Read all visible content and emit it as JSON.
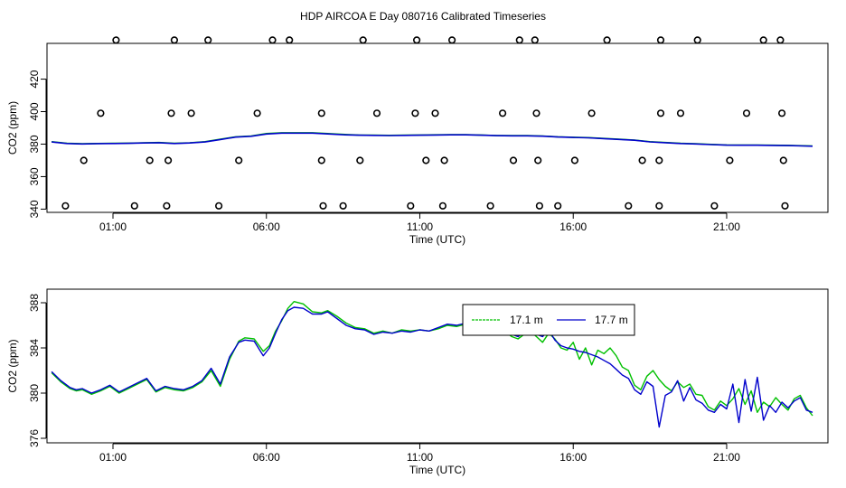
{
  "title": "HDP AIRCOA E  Day 080716  Calibrated Timeseries",
  "colors": {
    "green": "#00c000",
    "blue": "#0000cc"
  },
  "chart_data": [
    {
      "type": "line",
      "xlabel": "Time (UTC)",
      "ylabel": "CO2 (ppm)",
      "xticks": [
        "01:00",
        "06:00",
        "11:00",
        "16:00",
        "21:00"
      ],
      "xtick_hours": [
        1,
        6,
        11,
        16,
        21
      ],
      "xlim": [
        -1.15,
        24.3
      ],
      "yticks": [
        340,
        360,
        380,
        400,
        420
      ],
      "ylim": [
        338,
        442
      ],
      "grid": false,
      "series": [
        {
          "color": "green",
          "x": [
            -1,
            -0.5,
            0,
            0.5,
            1,
            1.5,
            2,
            2.5,
            3,
            3.5,
            4,
            4.5,
            5,
            5.5,
            6,
            6.5,
            7,
            7.5,
            8,
            8.5,
            9,
            9.5,
            10,
            10.5,
            11,
            11.5,
            12,
            12.5,
            13,
            13.5,
            14,
            14.5,
            15,
            15.5,
            16,
            16.5,
            17,
            17.5,
            18,
            18.5,
            19,
            19.5,
            20,
            20.5,
            21,
            21.5,
            22,
            22.5,
            23,
            23.5,
            23.8
          ],
          "y": [
            381.5,
            380.5,
            380.2,
            380.4,
            380.5,
            380.6,
            380.8,
            381.0,
            380.5,
            380.8,
            381.5,
            383,
            384.5,
            385,
            386.5,
            387,
            387,
            387,
            386.5,
            386,
            385.6,
            385.5,
            385.4,
            385.5,
            385.6,
            385.7,
            385.8,
            385.8,
            385.6,
            385.3,
            385.2,
            385.2,
            385.0,
            384.5,
            384.2,
            384.0,
            383.5,
            383.0,
            382.5,
            381.5,
            381.0,
            380.5,
            380.2,
            379.8,
            379.5,
            379.4,
            379.4,
            379.3,
            379.2,
            379.0,
            378.8
          ]
        },
        {
          "color": "blue",
          "x": [
            -1,
            -0.5,
            0,
            0.5,
            1,
            1.5,
            2,
            2.5,
            3,
            3.5,
            4,
            4.5,
            5,
            5.5,
            6,
            6.5,
            7,
            7.5,
            8,
            8.5,
            9,
            9.5,
            10,
            10.5,
            11,
            11.5,
            12,
            12.5,
            13,
            13.5,
            14,
            14.5,
            15,
            15.5,
            16,
            16.5,
            17,
            17.5,
            18,
            18.5,
            19,
            19.5,
            20,
            20.5,
            21,
            21.5,
            22,
            22.5,
            23,
            23.5,
            23.8
          ],
          "y": [
            381.3,
            380.4,
            380.1,
            380.3,
            380.4,
            380.5,
            380.7,
            380.9,
            380.4,
            380.7,
            381.3,
            382.8,
            384.3,
            384.8,
            386.2,
            386.8,
            386.8,
            386.8,
            386.3,
            385.8,
            385.5,
            385.4,
            385.3,
            385.4,
            385.5,
            385.6,
            385.7,
            385.7,
            385.5,
            385.2,
            385.1,
            385.1,
            384.9,
            384.4,
            384.1,
            383.9,
            383.4,
            382.9,
            382.4,
            381.4,
            380.9,
            380.4,
            380.1,
            379.7,
            379.4,
            379.3,
            379.3,
            379.2,
            379.1,
            378.9,
            378.7
          ]
        }
      ],
      "markers": {
        "symbol": "circle",
        "points": [
          [
            1.1,
            444
          ],
          [
            3.0,
            444
          ],
          [
            4.1,
            444
          ],
          [
            6.2,
            444
          ],
          [
            6.75,
            444
          ],
          [
            9.15,
            444
          ],
          [
            10.9,
            444
          ],
          [
            12.05,
            444
          ],
          [
            14.25,
            444
          ],
          [
            14.75,
            444
          ],
          [
            17.1,
            444
          ],
          [
            18.85,
            444
          ],
          [
            20.05,
            444
          ],
          [
            22.2,
            444
          ],
          [
            22.75,
            444
          ],
          [
            0.6,
            399
          ],
          [
            2.9,
            399
          ],
          [
            3.55,
            399
          ],
          [
            5.7,
            399
          ],
          [
            7.8,
            399
          ],
          [
            9.6,
            399
          ],
          [
            10.85,
            399
          ],
          [
            11.5,
            399
          ],
          [
            13.7,
            399
          ],
          [
            14.8,
            399
          ],
          [
            16.6,
            399
          ],
          [
            18.85,
            399
          ],
          [
            19.5,
            399
          ],
          [
            21.65,
            399
          ],
          [
            22.8,
            399
          ],
          [
            0.05,
            370
          ],
          [
            2.2,
            370
          ],
          [
            2.8,
            370
          ],
          [
            5.1,
            370
          ],
          [
            7.8,
            370
          ],
          [
            9.05,
            370
          ],
          [
            11.2,
            370
          ],
          [
            11.8,
            370
          ],
          [
            14.05,
            370
          ],
          [
            14.85,
            370
          ],
          [
            16.05,
            370
          ],
          [
            18.25,
            370
          ],
          [
            18.8,
            370
          ],
          [
            21.1,
            370
          ],
          [
            22.85,
            370
          ],
          [
            -0.55,
            342
          ],
          [
            1.7,
            342
          ],
          [
            2.75,
            342
          ],
          [
            4.45,
            342
          ],
          [
            7.85,
            342
          ],
          [
            8.5,
            342
          ],
          [
            10.7,
            342
          ],
          [
            11.75,
            342
          ],
          [
            13.3,
            342
          ],
          [
            14.9,
            342
          ],
          [
            15.5,
            342
          ],
          [
            17.8,
            342
          ],
          [
            18.8,
            342
          ],
          [
            20.6,
            342
          ],
          [
            22.9,
            342
          ]
        ]
      }
    },
    {
      "type": "line",
      "xlabel": "Time (UTC)",
      "ylabel": "CO2 (ppm)",
      "xticks": [
        "01:00",
        "06:00",
        "11:00",
        "16:00",
        "21:00"
      ],
      "xtick_hours": [
        1,
        6,
        11,
        16,
        21
      ],
      "xlim": [
        -1.15,
        24.3
      ],
      "yticks": [
        376,
        380,
        384,
        388
      ],
      "ylim": [
        375.6,
        389.2
      ],
      "grid": false,
      "legend": {
        "placement": "top-right"
      },
      "series": [
        {
          "name": "17.1 m",
          "color": "green",
          "x": [
            -1,
            -0.7,
            -0.4,
            -0.2,
            0,
            0.3,
            0.6,
            0.9,
            1.2,
            1.5,
            1.8,
            2.1,
            2.4,
            2.7,
            3,
            3.3,
            3.6,
            3.9,
            4.2,
            4.5,
            4.8,
            5.1,
            5.3,
            5.6,
            5.9,
            6.1,
            6.3,
            6.5,
            6.7,
            6.9,
            7.2,
            7.5,
            7.8,
            8.0,
            8.3,
            8.6,
            8.9,
            9.2,
            9.5,
            9.8,
            10.1,
            10.4,
            10.7,
            11.0,
            11.3,
            11.6,
            11.9,
            12.2,
            12.5,
            12.8,
            13.1,
            13.4,
            13.7,
            14.0,
            14.2,
            14.4,
            14.6,
            14.8,
            15.0,
            15.2,
            15.4,
            15.6,
            15.8,
            16.0,
            16.2,
            16.4,
            16.6,
            16.8,
            17.0,
            17.2,
            17.4,
            17.6,
            17.8,
            18.0,
            18.2,
            18.4,
            18.6,
            18.8,
            19.0,
            19.2,
            19.4,
            19.6,
            19.8,
            20.0,
            20.2,
            20.4,
            20.6,
            20.8,
            21.0,
            21.2,
            21.4,
            21.6,
            21.8,
            22.0,
            22.2,
            22.4,
            22.6,
            22.8,
            23.0,
            23.2,
            23.4,
            23.6,
            23.8
          ],
          "y": [
            381.8,
            381.0,
            380.4,
            380.2,
            380.3,
            379.9,
            380.2,
            380.6,
            380.0,
            380.4,
            380.8,
            381.2,
            380.1,
            380.5,
            380.3,
            380.2,
            380.5,
            381.0,
            382.0,
            380.6,
            383.0,
            384.6,
            384.9,
            384.8,
            383.7,
            384.2,
            385.5,
            386.4,
            387.5,
            388.1,
            387.9,
            387.2,
            387.1,
            387.3,
            386.8,
            386.2,
            385.8,
            385.7,
            385.3,
            385.5,
            385.3,
            385.6,
            385.5,
            385.6,
            385.5,
            385.7,
            386.0,
            385.9,
            386.1,
            386.0,
            385.8,
            385.7,
            385.6,
            385.0,
            384.8,
            385.2,
            385.5,
            385.0,
            384.5,
            385.3,
            384.8,
            384.0,
            383.8,
            384.5,
            383.0,
            384.0,
            382.5,
            383.8,
            383.5,
            384.0,
            383.3,
            382.3,
            382.0,
            380.7,
            380.3,
            381.5,
            382.0,
            381.2,
            380.6,
            380.2,
            381.0,
            380.5,
            380.8,
            379.9,
            379.8,
            378.8,
            378.5,
            379.3,
            378.9,
            379.5,
            380.4,
            379.0,
            380.2,
            378.3,
            379.2,
            378.8,
            379.6,
            379.0,
            378.5,
            379.5,
            379.8,
            378.7,
            378.0
          ]
        },
        {
          "name": "17.7 m",
          "color": "blue",
          "x": [
            -1,
            -0.7,
            -0.4,
            -0.2,
            0,
            0.3,
            0.6,
            0.9,
            1.2,
            1.5,
            1.8,
            2.1,
            2.4,
            2.7,
            3,
            3.3,
            3.6,
            3.9,
            4.2,
            4.5,
            4.8,
            5.1,
            5.3,
            5.6,
            5.9,
            6.1,
            6.3,
            6.5,
            6.7,
            6.9,
            7.2,
            7.5,
            7.8,
            8.0,
            8.3,
            8.6,
            8.9,
            9.2,
            9.5,
            9.8,
            10.1,
            10.4,
            10.7,
            11.0,
            11.3,
            11.6,
            11.9,
            12.2,
            12.5,
            12.8,
            13.1,
            13.4,
            13.7,
            14.0,
            14.2,
            14.4,
            14.6,
            14.8,
            15.0,
            15.2,
            15.4,
            15.6,
            15.8,
            16.0,
            16.2,
            16.4,
            16.6,
            16.8,
            17.0,
            17.2,
            17.4,
            17.6,
            17.8,
            18.0,
            18.2,
            18.4,
            18.6,
            18.8,
            19.0,
            19.2,
            19.4,
            19.6,
            19.8,
            20.0,
            20.2,
            20.4,
            20.6,
            20.8,
            21.0,
            21.2,
            21.4,
            21.6,
            21.8,
            22.0,
            22.2,
            22.4,
            22.6,
            22.8,
            23.0,
            23.2,
            23.4,
            23.6,
            23.8
          ],
          "y": [
            381.9,
            381.1,
            380.5,
            380.3,
            380.4,
            380.0,
            380.3,
            380.7,
            380.1,
            380.5,
            380.9,
            381.3,
            380.2,
            380.6,
            380.4,
            380.3,
            380.6,
            381.1,
            382.2,
            380.8,
            383.2,
            384.5,
            384.7,
            384.6,
            383.3,
            384.0,
            385.3,
            386.5,
            387.3,
            387.6,
            387.5,
            387.0,
            387.0,
            387.2,
            386.6,
            386.0,
            385.7,
            385.6,
            385.2,
            385.4,
            385.3,
            385.5,
            385.4,
            385.6,
            385.5,
            385.8,
            386.1,
            386.0,
            386.2,
            386.0,
            385.9,
            385.7,
            385.5,
            385.2,
            385.0,
            385.4,
            385.8,
            385.2,
            385.0,
            385.6,
            384.7,
            384.2,
            384.0,
            383.9,
            383.7,
            383.6,
            383.4,
            383.2,
            382.9,
            382.6,
            382.1,
            381.6,
            381.3,
            380.3,
            379.9,
            381.0,
            380.6,
            377.0,
            379.8,
            380.1,
            381.1,
            379.3,
            380.5,
            379.4,
            379.1,
            378.5,
            378.3,
            379.0,
            378.6,
            380.8,
            377.4,
            381.2,
            378.4,
            381.4,
            377.6,
            378.9,
            378.3,
            379.2,
            378.7,
            379.3,
            379.6,
            378.5,
            378.3
          ]
        }
      ]
    }
  ]
}
